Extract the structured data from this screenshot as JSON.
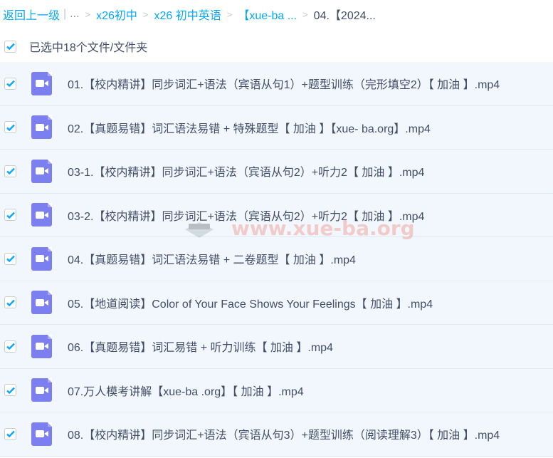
{
  "breadcrumb": {
    "back": "返回上一级",
    "ellipsis": "...",
    "items": [
      "x26初中",
      "x26 初中英语",
      "【xue-ba ..."
    ],
    "current": "04.【2024..."
  },
  "selection": {
    "label": "已选中18个文件/文件夹",
    "checked": true
  },
  "files": [
    "01.【校内精讲】同步词汇+语法（宾语从句1）+题型训练（完形填空2）【 加油 】.mp4",
    "02.【真题易错】词汇语法易错 + 特殊题型【 加油 】【xue- ba.org】.mp4",
    "03-1.【校内精讲】同步词汇+语法（宾语从句2）+听力2【 加油 】.mp4",
    "03-2.【校内精讲】同步词汇+语法（宾语从句2）+听力2【 加油 】.mp4",
    "04.【真题易错】词汇语法易错 + 二卷题型【 加油 】.mp4",
    "05.【地道阅读】Color of Your Face Shows Your Feelings【 加油 】.mp4",
    "06.【真题易错】词汇易错 + 听力训练【 加油 】.mp4",
    "07.万人模考讲解【xue-ba .org】【 加油 】.mp4",
    "08.【校内精讲】同步词汇+语法（宾语从句3）+题型训练（阅读理解3）【 加油 】.mp4"
  ],
  "watermark": "www.xue-ba.org",
  "colors": {
    "accent": "#06a7ff",
    "video_icon": "#7b7ff0",
    "row_bg": "#f2f7fe"
  }
}
